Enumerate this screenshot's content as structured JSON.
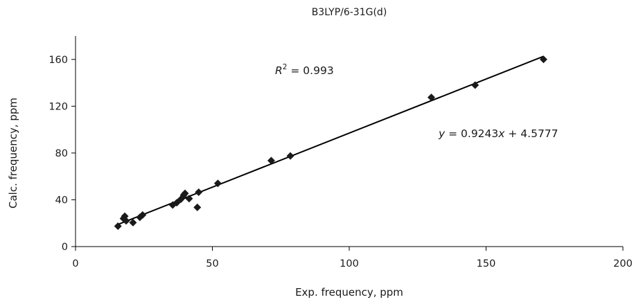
{
  "chart_data": {
    "type": "scatter",
    "title": "B3LYP/6-31G(d)",
    "xlabel": "Exp. frequency, ppm",
    "ylabel": "Calc. frequency, ppm",
    "xlim": [
      0,
      200
    ],
    "ylim": [
      0,
      180
    ],
    "xticks": [
      0,
      50,
      100,
      150,
      200
    ],
    "yticks": [
      0,
      40,
      80,
      120,
      160
    ],
    "grid": false,
    "legend": "none",
    "marker": "diamond",
    "color": "#1a1a1a",
    "points": [
      {
        "x": 15.5,
        "y": 17.5
      },
      {
        "x": 17.5,
        "y": 24
      },
      {
        "x": 18,
        "y": 26
      },
      {
        "x": 18.5,
        "y": 22
      },
      {
        "x": 21,
        "y": 20.5
      },
      {
        "x": 23.5,
        "y": 25
      },
      {
        "x": 24.5,
        "y": 27
      },
      {
        "x": 35.5,
        "y": 35.5
      },
      {
        "x": 37,
        "y": 37.5
      },
      {
        "x": 38.5,
        "y": 40.5
      },
      {
        "x": 39.5,
        "y": 44
      },
      {
        "x": 40,
        "y": 45.5
      },
      {
        "x": 41.5,
        "y": 41
      },
      {
        "x": 44.5,
        "y": 33.5
      },
      {
        "x": 45,
        "y": 46.5
      },
      {
        "x": 52,
        "y": 54
      },
      {
        "x": 71.5,
        "y": 73.5
      },
      {
        "x": 78.5,
        "y": 77.5
      },
      {
        "x": 130,
        "y": 127.5
      },
      {
        "x": 146,
        "y": 138
      },
      {
        "x": 171,
        "y": 160
      }
    ],
    "trendline": {
      "slope": 0.9243,
      "intercept": 4.5777,
      "x_range": [
        15.5,
        171
      ]
    },
    "annotations": {
      "r2_label": "R",
      "r2_exp": "2",
      "r2_value": " = 0.993",
      "eq_y": "y",
      "eq_mid": " = 0.9243",
      "eq_x": "x",
      "eq_end": " + 4.5777"
    }
  }
}
